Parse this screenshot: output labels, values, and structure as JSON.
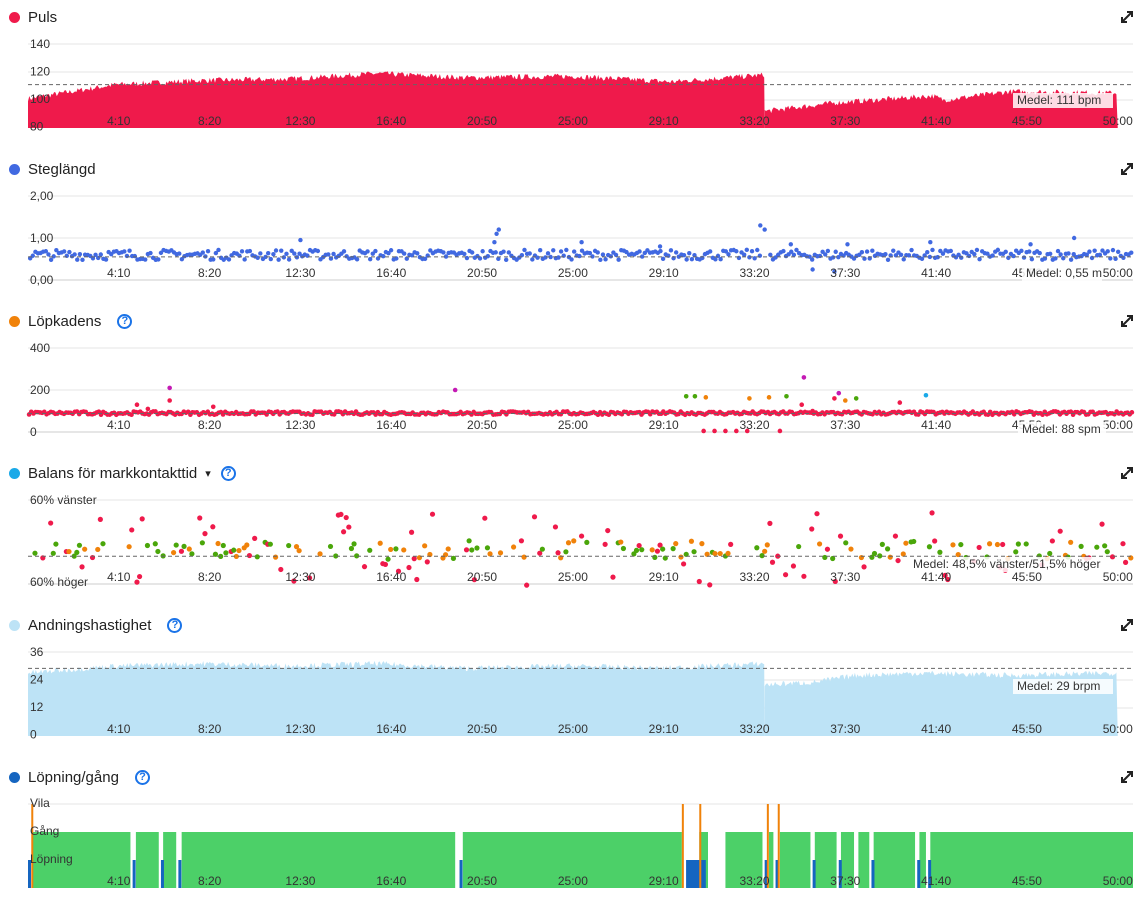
{
  "x_ticks": [
    "4:10",
    "8:20",
    "12:30",
    "16:40",
    "20:50",
    "25:00",
    "29:10",
    "33:20",
    "37:30",
    "41:40",
    "45:50",
    "50:00"
  ],
  "colors": {
    "red": "#ef1a4b",
    "blue": "#4169e1",
    "orange": "#f0820a",
    "green": "#4aa60a",
    "light_blue": "#bde3f6",
    "navy": "#1565c0",
    "magenta": "#c41ab4",
    "cyan": "#1aa9e8",
    "walk_green": "#4cd068"
  },
  "chart_data": [
    {
      "id": "puls",
      "type": "area",
      "title": "Puls",
      "icon": "red-dot",
      "y_ticks": [
        "140",
        "120",
        "100",
        "80"
      ],
      "ylim": [
        80,
        140
      ],
      "average_label": "Medel: 111 bpm",
      "average": 111,
      "segments": [
        {
          "x": [
            0,
            4,
            8,
            12,
            16,
            20,
            25,
            29.5,
            33.8
          ],
          "y": [
            101,
            111,
            114,
            115,
            119,
            116,
            117,
            113,
            118
          ]
        },
        {
          "x": [
            33.8,
            37,
            41.5,
            42,
            45,
            50
          ],
          "y": [
            92,
            98,
            103,
            100,
            106,
            105
          ]
        }
      ]
    },
    {
      "id": "steglangd",
      "type": "scatter",
      "title": "Steglängd",
      "icon": "blue-dot",
      "y_ticks": [
        "2,00",
        "1,00",
        "0,00"
      ],
      "ylim": [
        0,
        2
      ],
      "average_label": "Medel: 0,55 m",
      "average": 0.55,
      "base": 0.6,
      "spread": 0.12,
      "outliers": {
        "x": [
          12.5,
          21.5,
          21.6,
          21.4,
          25.4,
          29,
          33.6,
          33.8,
          35,
          36,
          37,
          37.6,
          41.4,
          46,
          48
        ],
        "y": [
          0.95,
          1.1,
          1.2,
          0.9,
          0.9,
          0.8,
          1.3,
          1.2,
          0.85,
          0.25,
          0.2,
          0.85,
          0.9,
          0.85,
          1.0
        ]
      }
    },
    {
      "id": "lopkadens",
      "type": "scatter",
      "title": "Löpkadens",
      "icon": "orange-dot",
      "help": "?",
      "y_ticks": [
        "400",
        "200",
        "0"
      ],
      "ylim": [
        0,
        400
      ],
      "average_label": "Medel: 88 spm",
      "average": 88,
      "base": 90,
      "spread": 8,
      "outliers_red": {
        "x": [
          5,
          5.5,
          6.5,
          8.5,
          31,
          31.5,
          32,
          32.5,
          33,
          34.5,
          35.5,
          36,
          37,
          40
        ],
        "y": [
          130,
          110,
          150,
          120,
          5,
          5,
          5,
          5,
          5,
          5,
          130,
          100,
          160,
          140
        ]
      },
      "outliers_magenta": {
        "x": [
          6.5,
          19.6,
          35.6,
          37.2
        ],
        "y": [
          210,
          200,
          260,
          185
        ]
      },
      "outliers_green": {
        "x": [
          30.2,
          30.6,
          34.8,
          38
        ],
        "y": [
          170,
          170,
          170,
          160
        ]
      },
      "outliers_orange": {
        "x": [
          31.1,
          33.1,
          34,
          37.5
        ],
        "y": [
          165,
          160,
          165,
          150
        ]
      },
      "outliers_cyan": {
        "x": [
          41.2
        ],
        "y": [
          175
        ]
      }
    },
    {
      "id": "balans",
      "type": "scatter",
      "title": "Balans för markkontakttid",
      "icon": "cyan-dot",
      "help": "?",
      "dropdown": "▾",
      "y_labels": [
        "60% vänster",
        "60% höger"
      ],
      "ylim": [
        -10,
        10
      ],
      "average_label": "Medel: 48,5% vänster/51,5% höger",
      "average": -1.5
    },
    {
      "id": "andning",
      "type": "area",
      "title": "Andningshastighet",
      "icon": "lightblue-dot",
      "help": "?",
      "y_ticks": [
        "36",
        "24",
        "12",
        "0"
      ],
      "ylim": [
        0,
        36
      ],
      "average_label": "Medel: 29 brpm",
      "average": 29,
      "segments": [
        {
          "x": [
            0,
            4,
            8,
            12,
            16,
            20,
            25,
            29,
            33.8
          ],
          "y": [
            27,
            30,
            31,
            30,
            31,
            29,
            30,
            29,
            31
          ]
        },
        {
          "x": [
            33.8,
            36,
            38,
            41,
            45,
            50
          ],
          "y": [
            22,
            23,
            26,
            27,
            26,
            27
          ]
        }
      ]
    },
    {
      "id": "lopning",
      "type": "heatmap",
      "title": "Löpning/gång",
      "icon": "navy-dot",
      "help": "?",
      "y_labels": [
        "Vila",
        "Gång",
        "Löpning"
      ],
      "vila_x": [
        0.15,
        30,
        30.8,
        33.9,
        34.4
      ],
      "gang_gaps": [
        [
          4.7,
          4.95
        ],
        [
          6,
          6.2
        ],
        [
          6.8,
          7.05
        ],
        [
          19.6,
          19.95
        ],
        [
          30,
          30.8
        ],
        [
          31.2,
          32
        ],
        [
          33.7,
          34
        ],
        [
          34.2,
          34.5
        ],
        [
          35.9,
          36.1
        ],
        [
          37.1,
          37.3
        ],
        [
          37.9,
          38.1
        ],
        [
          38.6,
          38.8
        ],
        [
          40.7,
          40.9
        ],
        [
          41.2,
          41.4
        ]
      ],
      "lopning_x": [
        0,
        4.8,
        6.1,
        6.9,
        19.8,
        30.2,
        30.5,
        33.8,
        34.3,
        36,
        37.2,
        38.7,
        40.8,
        41.3
      ]
    }
  ]
}
